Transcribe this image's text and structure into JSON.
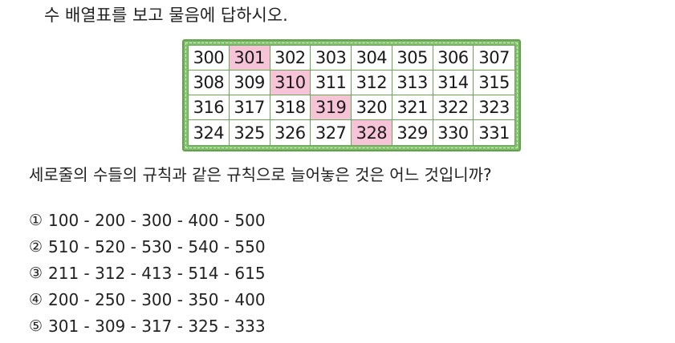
{
  "instruction": "수 배열표를 보고 물음에 답하시오.",
  "table": {
    "rows": [
      [
        "300",
        "301",
        "302",
        "303",
        "304",
        "305",
        "306",
        "307"
      ],
      [
        "308",
        "309",
        "310",
        "311",
        "312",
        "313",
        "314",
        "315"
      ],
      [
        "316",
        "317",
        "318",
        "319",
        "320",
        "321",
        "322",
        "323"
      ],
      [
        "324",
        "325",
        "326",
        "327",
        "328",
        "329",
        "330",
        "331"
      ]
    ],
    "highlighted": [
      "301",
      "310",
      "319",
      "328"
    ],
    "highlight_color": "#f7c3d7",
    "border_color": "#7fbf6a"
  },
  "question": "세로줄의 수들의 규칙과 같은 규칙으로 늘어놓은 것은 어느 것입니까?",
  "options": [
    {
      "num": "①",
      "text": "100 - 200 - 300 - 400 - 500"
    },
    {
      "num": "②",
      "text": "510 - 520 - 530 - 540 - 550"
    },
    {
      "num": "③",
      "text": "211 - 312 - 413 - 514 - 615"
    },
    {
      "num": "④",
      "text": "200 - 250 - 300 - 350 - 400"
    },
    {
      "num": "⑤",
      "text": "301 - 309 - 317 - 325 - 333"
    }
  ]
}
